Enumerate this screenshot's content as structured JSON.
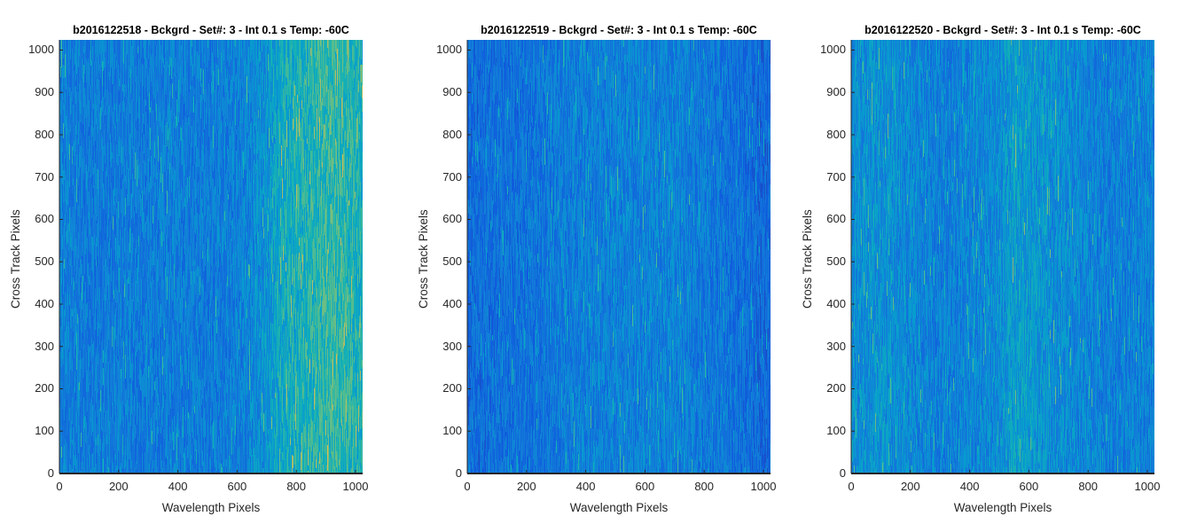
{
  "chart_data": [
    {
      "type": "heatmap",
      "title": "b2016122518 - Bckgrd - Set#: 3 - Int 0.1 s Temp: -60C",
      "xlabel": "Wavelength Pixels",
      "ylabel": "Cross Track Pixels",
      "xlim": [
        0,
        1024
      ],
      "ylim": [
        0,
        1024
      ],
      "xticks": [
        0,
        200,
        400,
        600,
        800,
        1000
      ],
      "yticks": [
        0,
        100,
        200,
        300,
        400,
        500,
        600,
        700,
        800,
        900,
        1000
      ],
      "xtick_labels": [
        "0",
        "200",
        "400",
        "600",
        "800",
        "1000"
      ],
      "ytick_labels": [
        "0",
        "100",
        "200",
        "300",
        "400",
        "500",
        "600",
        "700",
        "800",
        "900",
        "1000"
      ],
      "colormap": "parula",
      "column_intensity_profile": {
        "x": [
          0,
          100,
          200,
          300,
          400,
          500,
          600,
          700,
          750,
          800,
          850,
          900,
          950,
          1024
        ],
        "level": [
          0.32,
          0.28,
          0.3,
          0.28,
          0.3,
          0.28,
          0.3,
          0.38,
          0.48,
          0.5,
          0.52,
          0.56,
          0.55,
          0.5
        ]
      }
    },
    {
      "type": "heatmap",
      "title": "b2016122519 - Bckgrd - Set#: 3 - Int 0.1 s Temp: -60C",
      "xlabel": "Wavelength Pixels",
      "ylabel": "Cross Track Pixels",
      "xlim": [
        0,
        1024
      ],
      "ylim": [
        0,
        1024
      ],
      "xticks": [
        0,
        200,
        400,
        600,
        800,
        1000
      ],
      "yticks": [
        0,
        100,
        200,
        300,
        400,
        500,
        600,
        700,
        800,
        900,
        1000
      ],
      "xtick_labels": [
        "0",
        "200",
        "400",
        "600",
        "800",
        "1000"
      ],
      "ytick_labels": [
        "0",
        "100",
        "200",
        "300",
        "400",
        "500",
        "600",
        "700",
        "800",
        "900",
        "1000"
      ],
      "colormap": "parula",
      "column_intensity_profile": {
        "x": [
          0,
          100,
          200,
          300,
          400,
          500,
          600,
          700,
          800,
          900,
          1024
        ],
        "level": [
          0.22,
          0.24,
          0.25,
          0.28,
          0.3,
          0.31,
          0.31,
          0.32,
          0.28,
          0.25,
          0.2
        ]
      }
    },
    {
      "type": "heatmap",
      "title": "b2016122520 - Bckgrd - Set#: 3 - Int 0.1 s Temp: -60C",
      "xlabel": "Wavelength Pixels",
      "ylabel": "Cross Track Pixels",
      "xlim": [
        0,
        1024
      ],
      "ylim": [
        0,
        1024
      ],
      "xticks": [
        0,
        200,
        400,
        600,
        800,
        1000
      ],
      "yticks": [
        0,
        100,
        200,
        300,
        400,
        500,
        600,
        700,
        800,
        900,
        1000
      ],
      "xtick_labels": [
        "0",
        "200",
        "400",
        "600",
        "800",
        "1000"
      ],
      "ytick_labels": [
        "0",
        "100",
        "200",
        "300",
        "400",
        "500",
        "600",
        "700",
        "800",
        "900",
        "1000"
      ],
      "colormap": "parula",
      "column_intensity_profile": {
        "x": [
          0,
          100,
          200,
          300,
          400,
          500,
          550,
          600,
          700,
          800,
          900,
          1024
        ],
        "level": [
          0.36,
          0.38,
          0.34,
          0.3,
          0.32,
          0.36,
          0.42,
          0.4,
          0.36,
          0.32,
          0.3,
          0.32
        ]
      }
    }
  ]
}
